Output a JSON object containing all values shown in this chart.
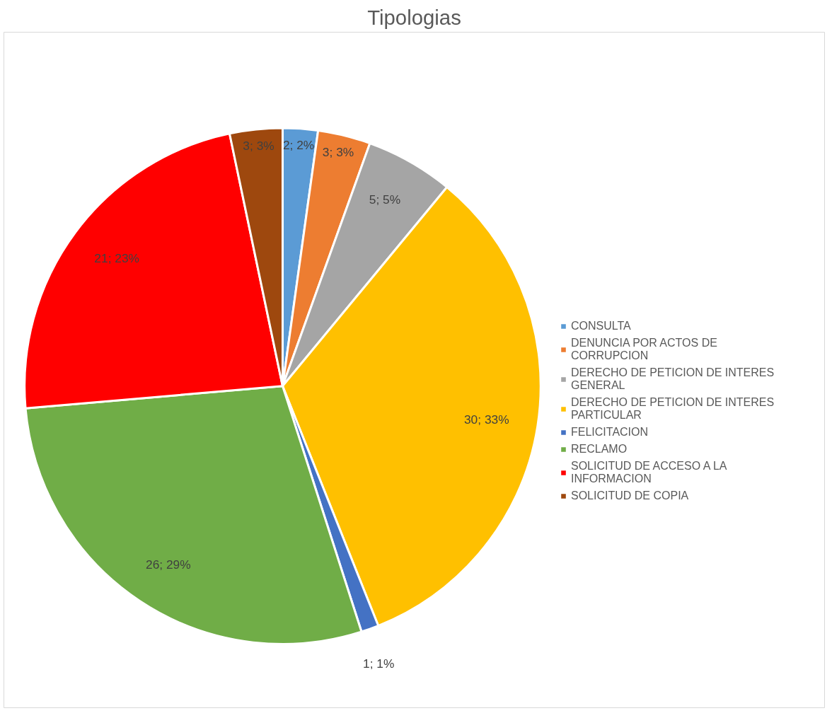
{
  "chart_data": {
    "type": "pie",
    "title": "Tipologias",
    "categories": [
      "CONSULTA",
      "DENUNCIA POR ACTOS DE CORRUPCION",
      "DERECHO DE PETICION DE INTERES GENERAL",
      "DERECHO DE PETICION DE INTERES PARTICULAR",
      "FELICITACION",
      "RECLAMO",
      "SOLICITUD DE ACCESO A LA INFORMACION",
      "SOLICITUD DE COPIA"
    ],
    "values": [
      2,
      3,
      5,
      30,
      1,
      26,
      21,
      3
    ],
    "colors": [
      "#5b9bd5",
      "#ed7d31",
      "#a5a5a5",
      "#ffc000",
      "#4472c4",
      "#70ad47",
      "#ff0000",
      "#9e480e"
    ],
    "value_labels": [
      "2; 2%",
      "3; 3%",
      "5; 5%",
      "30; 33%",
      "1; 1%",
      "26; 29%",
      "21; 23%",
      "3; 3%"
    ],
    "legend": "right"
  }
}
